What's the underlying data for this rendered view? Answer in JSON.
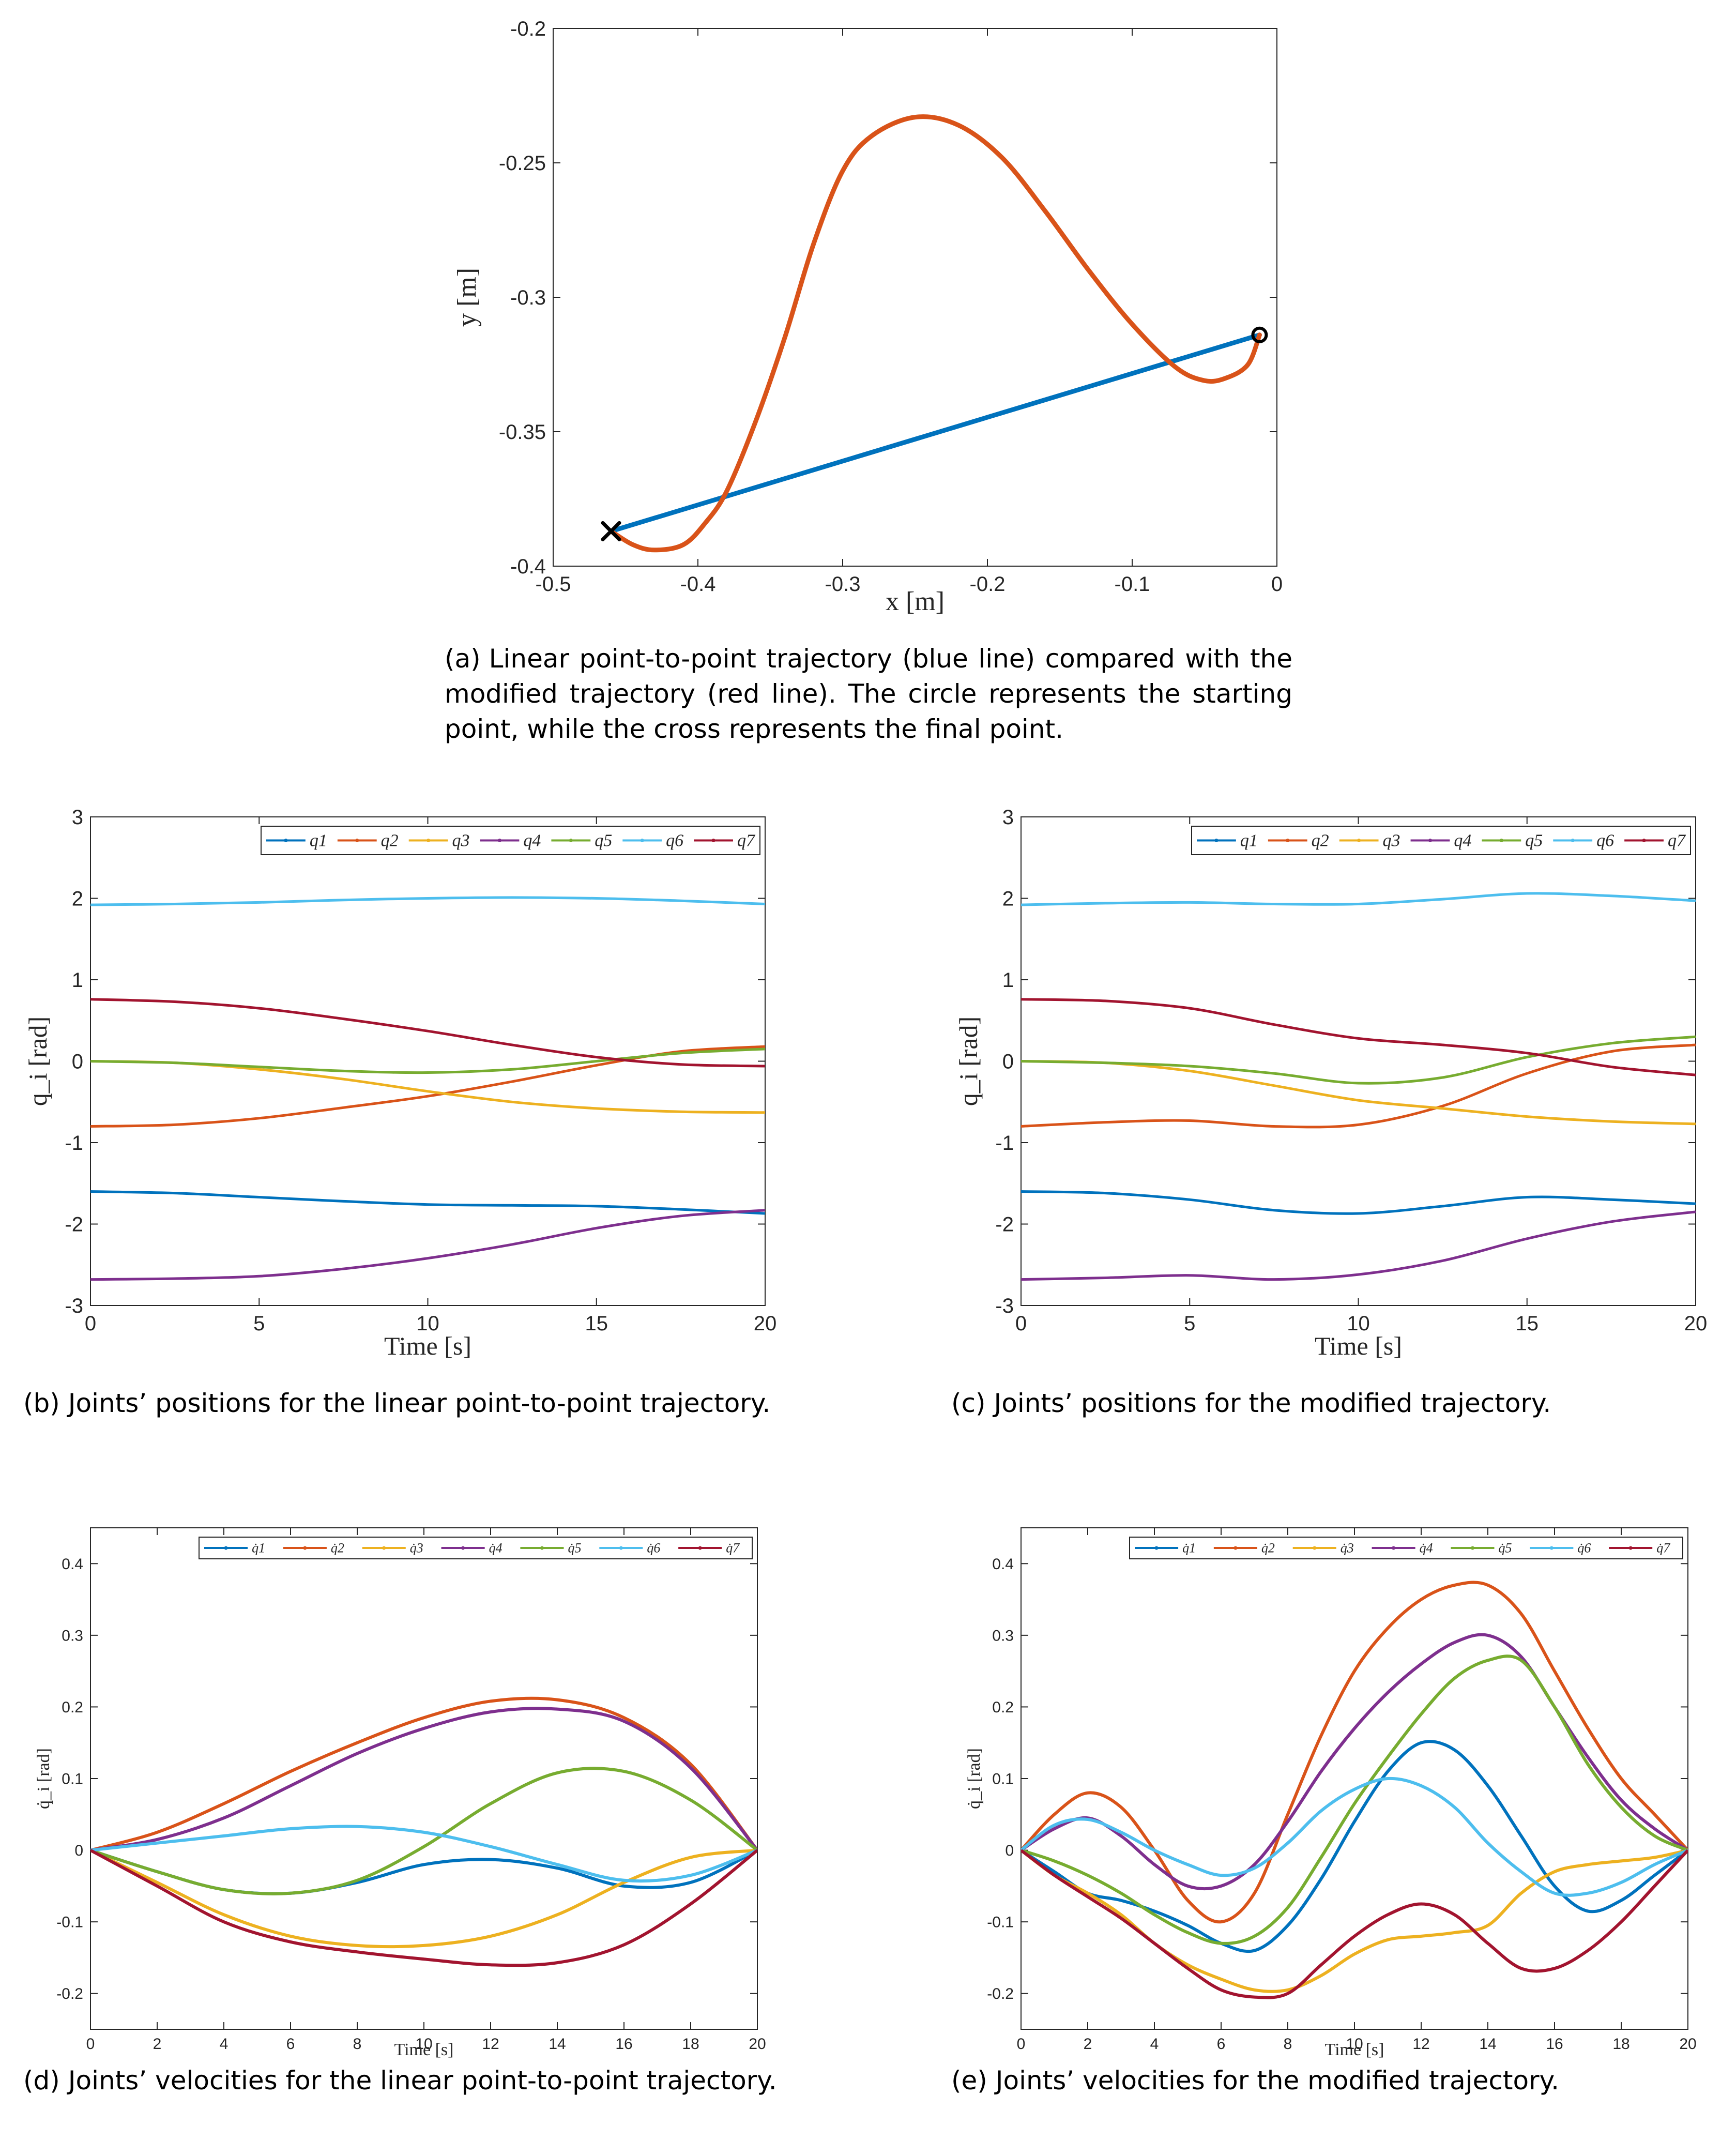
{
  "colors": {
    "q1": "#0072BD",
    "q2": "#D95319",
    "q3": "#EDB120",
    "q4": "#7E2F8E",
    "q5": "#77AC30",
    "q6": "#4DBEEE",
    "q7": "#A2142F",
    "axis": "#262626",
    "marker": "#000000"
  },
  "captions": {
    "a": {
      "label": "(a)",
      "text": "Linear point-to-point trajectory (blue line) compared with the modified trajectory (red line). The circle represents the starting point, while the cross represents the final point."
    },
    "b": {
      "label": "(b)",
      "text": "Joints’ positions for the linear point-to-point trajectory."
    },
    "c": {
      "label": "(c)",
      "text": "Joints’ positions for the modified trajectory."
    },
    "d": {
      "label": "(d)",
      "text": "Joints’ velocities for the linear point-to-point trajectory."
    },
    "e": {
      "label": "(e)",
      "text": "Joints’ velocities for the modified trajectory."
    }
  },
  "chart_data": [
    {
      "id": "a",
      "type": "line",
      "xlabel": "x [m]",
      "ylabel": "y [m]",
      "xlim": [
        -0.5,
        0
      ],
      "ylim": [
        -0.4,
        -0.2
      ],
      "xticks": [
        -0.5,
        -0.4,
        -0.3,
        -0.2,
        -0.1,
        0
      ],
      "xtick_labels": [
        "-0.5",
        "-0.4",
        "-0.3",
        "-0.2",
        "-0.1",
        "0"
      ],
      "yticks": [
        -0.4,
        -0.35,
        -0.3,
        -0.25,
        -0.2
      ],
      "ytick_labels": [
        "-0.4",
        "-0.35",
        "-0.3",
        "-0.25",
        "-0.2"
      ],
      "series": [
        {
          "name": "linear trajectory",
          "color_key": "q1",
          "x": [
            -0.012,
            -0.46
          ],
          "y": [
            -0.314,
            -0.387
          ]
        },
        {
          "name": "modified trajectory",
          "color_key": "q2",
          "x": [
            -0.012,
            -0.02,
            -0.035,
            -0.05,
            -0.07,
            -0.1,
            -0.13,
            -0.16,
            -0.19,
            -0.22,
            -0.25,
            -0.28,
            -0.3,
            -0.32,
            -0.34,
            -0.36,
            -0.38,
            -0.395,
            -0.41,
            -0.43,
            -0.445,
            -0.46
          ],
          "y": [
            -0.314,
            -0.325,
            -0.33,
            -0.331,
            -0.326,
            -0.31,
            -0.29,
            -0.268,
            -0.248,
            -0.236,
            -0.233,
            -0.24,
            -0.253,
            -0.28,
            -0.315,
            -0.346,
            -0.372,
            -0.384,
            -0.392,
            -0.394,
            -0.392,
            -0.387
          ]
        }
      ],
      "markers": [
        {
          "name": "start",
          "shape": "circle",
          "x": -0.012,
          "y": -0.314
        },
        {
          "name": "end",
          "shape": "cross",
          "x": -0.46,
          "y": -0.387
        }
      ]
    },
    {
      "id": "b",
      "type": "line",
      "xlabel": "Time [s]",
      "ylabel": "q_i [rad]",
      "xlim": [
        0,
        20
      ],
      "ylim": [
        -3,
        3
      ],
      "xticks": [
        0,
        5,
        10,
        15,
        20
      ],
      "xtick_labels": [
        "0",
        "5",
        "10",
        "15",
        "20"
      ],
      "yticks": [
        -3,
        -2,
        -1,
        0,
        1,
        2,
        3
      ],
      "ytick_labels": [
        "-3",
        "-2",
        "-1",
        "0",
        "1",
        "2",
        "3"
      ],
      "legend": [
        "q1",
        "q2",
        "q3",
        "q4",
        "q5",
        "q6",
        "q7"
      ],
      "x": [
        0,
        2.5,
        5,
        7.5,
        10,
        12.5,
        15,
        17.5,
        20
      ],
      "series": [
        {
          "name": "q1",
          "values": [
            -1.6,
            -1.62,
            -1.67,
            -1.72,
            -1.76,
            -1.77,
            -1.78,
            -1.82,
            -1.87
          ]
        },
        {
          "name": "q2",
          "values": [
            -0.8,
            -0.78,
            -0.7,
            -0.57,
            -0.43,
            -0.25,
            -0.05,
            0.12,
            0.18
          ]
        },
        {
          "name": "q3",
          "values": [
            0.0,
            -0.02,
            -0.1,
            -0.22,
            -0.37,
            -0.5,
            -0.58,
            -0.62,
            -0.63
          ]
        },
        {
          "name": "q4",
          "values": [
            -2.68,
            -2.67,
            -2.64,
            -2.55,
            -2.42,
            -2.25,
            -2.05,
            -1.9,
            -1.83
          ]
        },
        {
          "name": "q5",
          "values": [
            0.0,
            -0.02,
            -0.07,
            -0.12,
            -0.14,
            -0.1,
            0.0,
            0.1,
            0.15
          ]
        },
        {
          "name": "q6",
          "values": [
            1.92,
            1.93,
            1.95,
            1.98,
            2.0,
            2.01,
            2.0,
            1.97,
            1.93
          ]
        },
        {
          "name": "q7",
          "values": [
            0.76,
            0.73,
            0.65,
            0.52,
            0.37,
            0.2,
            0.05,
            -0.04,
            -0.06
          ]
        }
      ]
    },
    {
      "id": "c",
      "type": "line",
      "xlabel": "Time [s]",
      "ylabel": "q_i [rad]",
      "xlim": [
        0,
        20
      ],
      "ylim": [
        -3,
        3
      ],
      "xticks": [
        0,
        5,
        10,
        15,
        20
      ],
      "xtick_labels": [
        "0",
        "5",
        "10",
        "15",
        "20"
      ],
      "yticks": [
        -3,
        -2,
        -1,
        0,
        1,
        2,
        3
      ],
      "ytick_labels": [
        "-3",
        "-2",
        "-1",
        "0",
        "1",
        "2",
        "3"
      ],
      "legend": [
        "q1",
        "q2",
        "q3",
        "q4",
        "q5",
        "q6",
        "q7"
      ],
      "x": [
        0,
        2.5,
        5,
        7.5,
        10,
        12.5,
        15,
        17.5,
        20
      ],
      "series": [
        {
          "name": "q1",
          "values": [
            -1.6,
            -1.62,
            -1.7,
            -1.83,
            -1.87,
            -1.78,
            -1.67,
            -1.7,
            -1.75
          ]
        },
        {
          "name": "q2",
          "values": [
            -0.8,
            -0.75,
            -0.73,
            -0.8,
            -0.78,
            -0.55,
            -0.15,
            0.12,
            0.2
          ]
        },
        {
          "name": "q3",
          "values": [
            0.0,
            -0.02,
            -0.12,
            -0.3,
            -0.48,
            -0.58,
            -0.68,
            -0.74,
            -0.77
          ]
        },
        {
          "name": "q4",
          "values": [
            -2.68,
            -2.66,
            -2.63,
            -2.68,
            -2.62,
            -2.45,
            -2.18,
            -1.97,
            -1.85
          ]
        },
        {
          "name": "q5",
          "values": [
            0.0,
            -0.02,
            -0.06,
            -0.15,
            -0.27,
            -0.2,
            0.05,
            0.22,
            0.3
          ]
        },
        {
          "name": "q6",
          "values": [
            1.92,
            1.94,
            1.95,
            1.93,
            1.93,
            1.99,
            2.06,
            2.03,
            1.97
          ]
        },
        {
          "name": "q7",
          "values": [
            0.76,
            0.74,
            0.65,
            0.45,
            0.28,
            0.2,
            0.1,
            -0.07,
            -0.17
          ]
        }
      ]
    },
    {
      "id": "d",
      "type": "line",
      "xlabel": "Time [s]",
      "ylabel": "q̇_i [rad]",
      "xlim": [
        0,
        20
      ],
      "ylim": [
        -0.25,
        0.45
      ],
      "xticks": [
        0,
        2,
        4,
        6,
        8,
        10,
        12,
        14,
        16,
        18,
        20
      ],
      "xtick_labels": [
        "0",
        "2",
        "4",
        "6",
        "8",
        "10",
        "12",
        "14",
        "16",
        "18",
        "20"
      ],
      "yticks": [
        -0.2,
        -0.1,
        0,
        0.1,
        0.2,
        0.3,
        0.4
      ],
      "ytick_labels": [
        "-0.2",
        "-0.1",
        "0",
        "0.1",
        "0.2",
        "0.3",
        "0.4"
      ],
      "legend": [
        "q̇1",
        "q̇2",
        "q̇3",
        "q̇4",
        "q̇5",
        "q̇6",
        "q̇7"
      ],
      "x": [
        0,
        2,
        4,
        6,
        8,
        10,
        12,
        14,
        16,
        18,
        20
      ],
      "series": [
        {
          "name": "q̇1",
          "values": [
            0,
            -0.03,
            -0.055,
            -0.06,
            -0.045,
            -0.02,
            -0.013,
            -0.025,
            -0.05,
            -0.045,
            0
          ]
        },
        {
          "name": "q̇2",
          "values": [
            0,
            0.025,
            0.065,
            0.11,
            0.15,
            0.185,
            0.208,
            0.21,
            0.185,
            0.12,
            0
          ]
        },
        {
          "name": "q̇3",
          "values": [
            0,
            -0.045,
            -0.09,
            -0.12,
            -0.133,
            -0.133,
            -0.12,
            -0.09,
            -0.045,
            -0.01,
            0
          ]
        },
        {
          "name": "q̇4",
          "values": [
            0,
            0.015,
            0.045,
            0.09,
            0.135,
            0.17,
            0.193,
            0.197,
            0.18,
            0.115,
            0
          ]
        },
        {
          "name": "q̇5",
          "values": [
            0,
            -0.03,
            -0.055,
            -0.06,
            -0.042,
            0.005,
            0.065,
            0.108,
            0.11,
            0.07,
            0
          ]
        },
        {
          "name": "q̇6",
          "values": [
            0,
            0.01,
            0.02,
            0.03,
            0.033,
            0.025,
            0.005,
            -0.02,
            -0.042,
            -0.035,
            0
          ]
        },
        {
          "name": "q̇7",
          "values": [
            0,
            -0.05,
            -0.1,
            -0.128,
            -0.142,
            -0.152,
            -0.16,
            -0.157,
            -0.132,
            -0.075,
            0
          ]
        }
      ]
    },
    {
      "id": "e",
      "type": "line",
      "xlabel": "Time [s]",
      "ylabel": "q̇_i [rad]",
      "xlim": [
        0,
        20
      ],
      "ylim": [
        -0.25,
        0.45
      ],
      "xticks": [
        0,
        2,
        4,
        6,
        8,
        10,
        12,
        14,
        16,
        18,
        20
      ],
      "xtick_labels": [
        "0",
        "2",
        "4",
        "6",
        "8",
        "10",
        "12",
        "14",
        "16",
        "18",
        "20"
      ],
      "yticks": [
        -0.2,
        -0.1,
        0,
        0.1,
        0.2,
        0.3,
        0.4
      ],
      "ytick_labels": [
        "-0.2",
        "-0.1",
        "0",
        "0.1",
        "0.2",
        "0.3",
        "0.4"
      ],
      "legend": [
        "q̇1",
        "q̇2",
        "q̇3",
        "q̇4",
        "q̇5",
        "q̇6",
        "q̇7"
      ],
      "x": [
        0,
        1,
        2,
        3,
        4,
        5,
        6,
        7,
        8,
        9,
        10,
        11,
        12,
        13,
        14,
        15,
        16,
        17,
        18,
        19,
        20
      ],
      "series": [
        {
          "name": "q̇1",
          "values": [
            0,
            -0.03,
            -0.06,
            -0.07,
            -0.085,
            -0.105,
            -0.13,
            -0.14,
            -0.105,
            -0.04,
            0.04,
            0.11,
            0.15,
            0.14,
            0.09,
            0.02,
            -0.05,
            -0.085,
            -0.07,
            -0.035,
            0
          ]
        },
        {
          "name": "q̇2",
          "values": [
            0,
            0.05,
            0.08,
            0.06,
            0.0,
            -0.07,
            -0.1,
            -0.06,
            0.05,
            0.16,
            0.25,
            0.31,
            0.35,
            0.37,
            0.37,
            0.33,
            0.25,
            0.17,
            0.1,
            0.05,
            0
          ]
        },
        {
          "name": "q̇3",
          "values": [
            0,
            -0.035,
            -0.06,
            -0.09,
            -0.13,
            -0.16,
            -0.18,
            -0.195,
            -0.195,
            -0.175,
            -0.145,
            -0.125,
            -0.12,
            -0.115,
            -0.105,
            -0.06,
            -0.03,
            -0.02,
            -0.015,
            -0.01,
            0
          ]
        },
        {
          "name": "q̇4",
          "values": [
            0,
            0.03,
            0.045,
            0.02,
            -0.02,
            -0.05,
            -0.05,
            -0.02,
            0.04,
            0.11,
            0.17,
            0.22,
            0.26,
            0.29,
            0.3,
            0.27,
            0.2,
            0.13,
            0.07,
            0.03,
            0
          ]
        },
        {
          "name": "q̇5",
          "values": [
            0,
            -0.015,
            -0.035,
            -0.06,
            -0.09,
            -0.115,
            -0.13,
            -0.12,
            -0.08,
            -0.01,
            0.065,
            0.13,
            0.19,
            0.24,
            0.265,
            0.265,
            0.2,
            0.12,
            0.06,
            0.02,
            0
          ]
        },
        {
          "name": "q̇6",
          "values": [
            0,
            0.035,
            0.043,
            0.025,
            0.0,
            -0.02,
            -0.035,
            -0.025,
            0.01,
            0.055,
            0.085,
            0.1,
            0.09,
            0.06,
            0.01,
            -0.03,
            -0.06,
            -0.06,
            -0.045,
            -0.02,
            0
          ]
        },
        {
          "name": "q̇7",
          "values": [
            0,
            -0.035,
            -0.065,
            -0.095,
            -0.13,
            -0.165,
            -0.195,
            -0.205,
            -0.2,
            -0.16,
            -0.12,
            -0.09,
            -0.075,
            -0.09,
            -0.13,
            -0.165,
            -0.165,
            -0.14,
            -0.1,
            -0.05,
            0
          ]
        }
      ]
    }
  ]
}
